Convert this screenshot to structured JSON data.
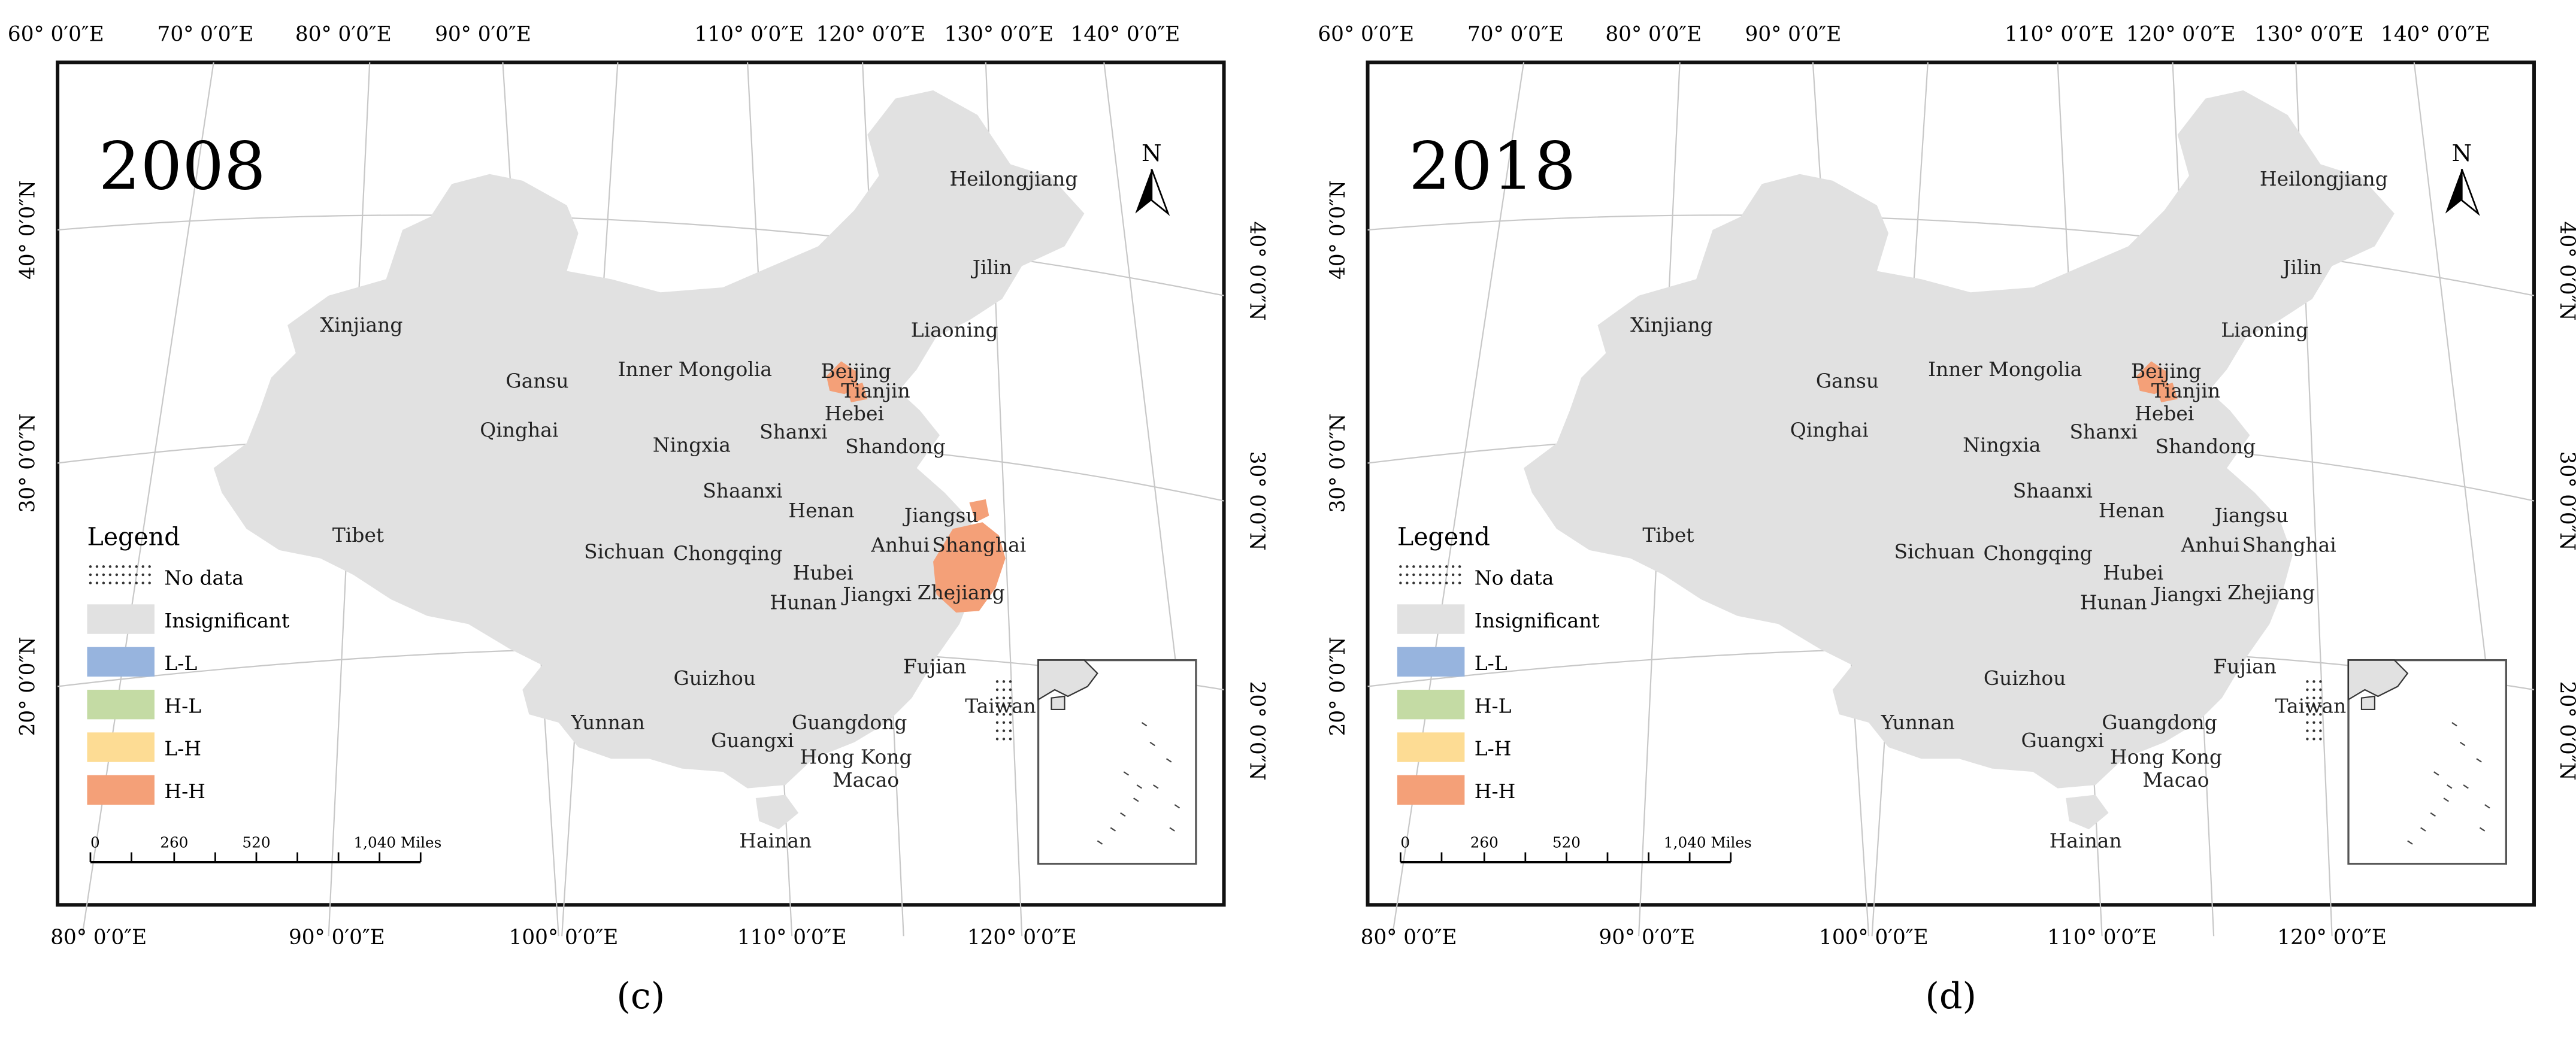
{
  "maps": [
    {
      "year": "2008",
      "panel_label": "(c)",
      "hh_regions": [
        "Beijing",
        "Tianjin",
        "Zhejiang",
        "Shanghai"
      ]
    },
    {
      "year": "2018",
      "panel_label": "(d)",
      "hh_regions": [
        "Beijing",
        "Tianjin"
      ]
    }
  ],
  "top_lon_labels": [
    "60° 0′0″E",
    "70° 0′0″E",
    "80° 0′0″E",
    "90° 0′0″E",
    "110° 0′0″E",
    "120° 0′0″E",
    "130° 0′0″E",
    "140° 0′0″E"
  ],
  "bottom_lon_labels": [
    "80° 0′0″E",
    "90° 0′0″E",
    "100° 0′0″E",
    "110° 0′0″E",
    "120° 0′0″E"
  ],
  "left_lat_labels": [
    "40° 0′0″N",
    "30° 0′0″N",
    "20° 0′0″N"
  ],
  "right_lat_labels": [
    "40° 0′0″N",
    "30° 0′0″N",
    "20° 0′0″N"
  ],
  "north_arrow": "N",
  "legend": {
    "title": "Legend",
    "items": [
      {
        "label": "No data",
        "pattern": "dots"
      },
      {
        "label": "Insignificant",
        "color": "#e1e1e1"
      },
      {
        "label": "L-L",
        "color": "#97b4de"
      },
      {
        "label": "H-L",
        "color": "#c4dba4"
      },
      {
        "label": "L-H",
        "color": "#fddc94"
      },
      {
        "label": "H-H",
        "color": "#f4a078"
      }
    ]
  },
  "scale_bar": {
    "labels": [
      "0",
      "260",
      "520",
      "1,040 Miles"
    ]
  },
  "provinces": [
    "Heilongjiang",
    "Jilin",
    "Liaoning",
    "Xinjiang",
    "Gansu",
    "Inner Mongolia",
    "Beijing",
    "Tianjin",
    "Hebei",
    "Shanxi",
    "Ningxia",
    "Shandong",
    "Qinghai",
    "Shaanxi",
    "Henan",
    "Jiangsu",
    "Tibet",
    "Anhui",
    "Shanghai",
    "Hubei",
    "Sichuan",
    "Chongqing",
    "Zhejiang",
    "Jiangxi",
    "Hunan",
    "Fujian",
    "Guizhou",
    "Taiwan",
    "Yunnan",
    "Guangdong",
    "Guangxi",
    "Hong Kong",
    "Macao",
    "Hainan"
  ],
  "colors": {
    "land": "#e1e1e1",
    "hh": "#f4a078",
    "frame": "#111111",
    "grid": "#c8c8c8"
  }
}
